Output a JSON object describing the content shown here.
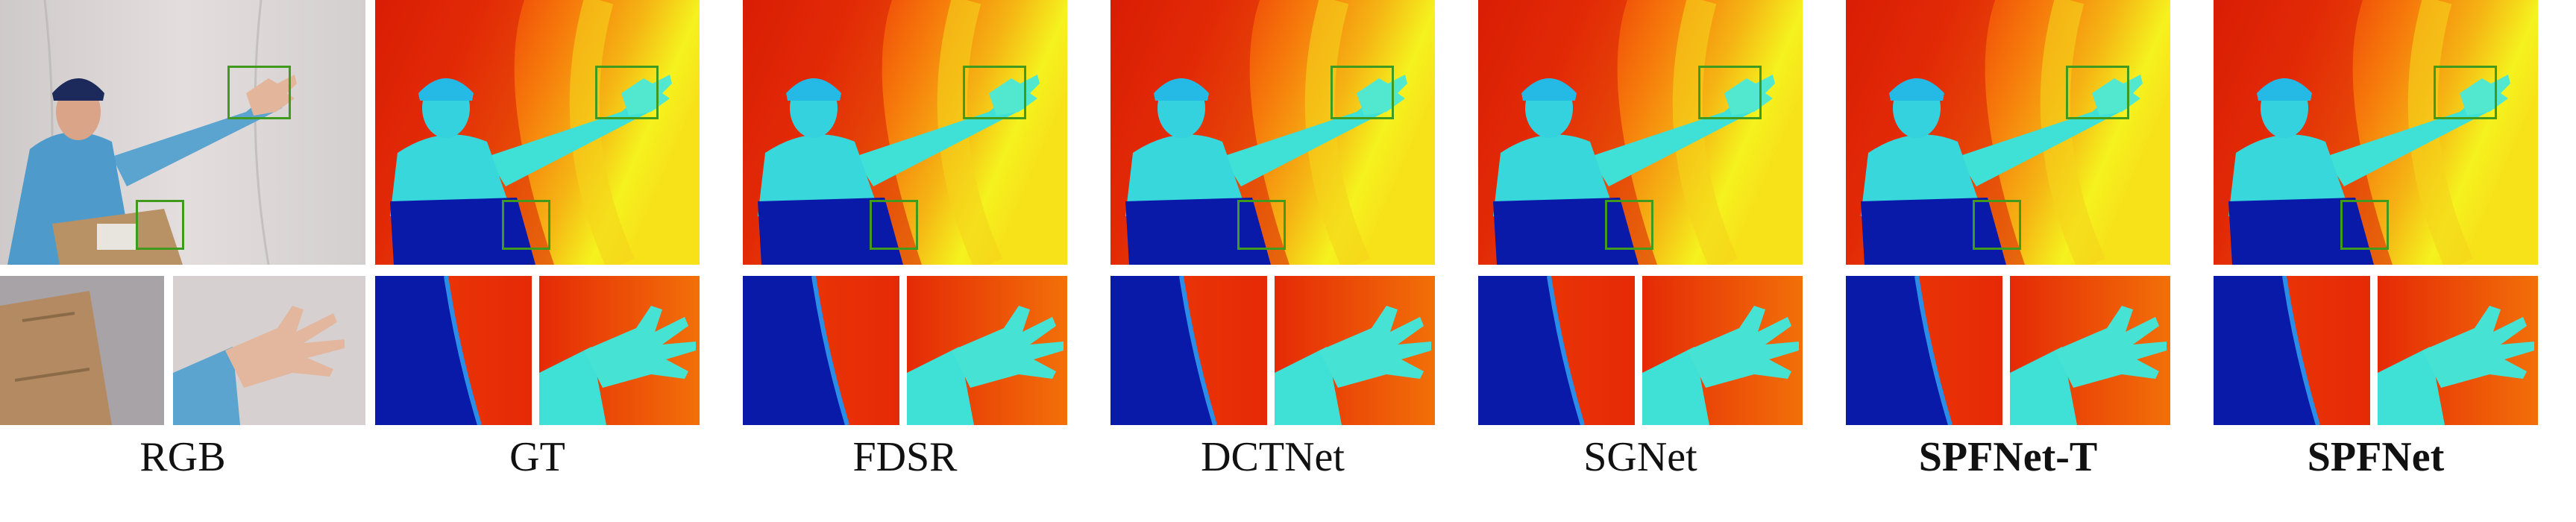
{
  "columns": [
    {
      "label": "RGB",
      "bold": false,
      "kind": "rgb"
    },
    {
      "label": "GT",
      "bold": false,
      "kind": "depth"
    },
    {
      "label": "FDSR",
      "bold": false,
      "kind": "depth"
    },
    {
      "label": "DCTNet",
      "bold": false,
      "kind": "depth"
    },
    {
      "label": "SGNet",
      "bold": false,
      "kind": "depth"
    },
    {
      "label": "SPFNet-T",
      "bold": true,
      "kind": "depth"
    },
    {
      "label": "SPFNet",
      "bold": true,
      "kind": "depth"
    }
  ],
  "colors": {
    "box_green": "#3f9a1d",
    "depth_near": "#0a1aa8",
    "depth_mid": "#3fe0d6",
    "depth_far_red": "#d81e05",
    "depth_far_yellow": "#f5f21e",
    "backdrop_rgb": "#d9d4d3",
    "shirt_rgb": "#5aa4cf"
  }
}
